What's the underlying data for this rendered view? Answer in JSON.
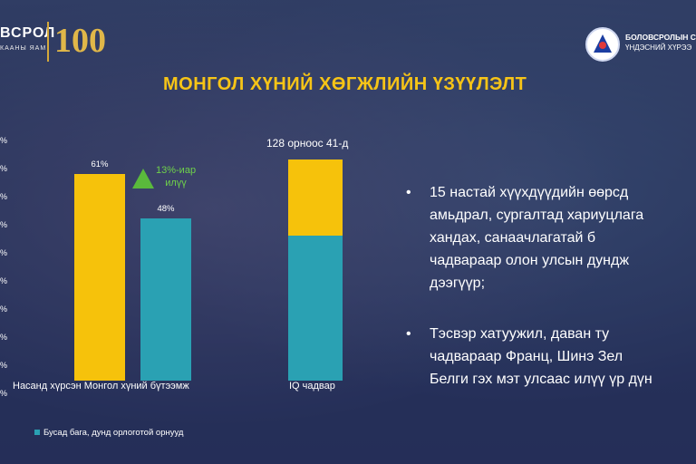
{
  "header": {
    "logo_left_text": "ВСРОЛ",
    "logo_left_sub": "КААНЫ ЯАМ",
    "logo_anniversary": "100",
    "org_name_line1": "БОЛОВСРОЛЫН СУ",
    "org_name_line2": "ҮНДЭСНИЙ ХҮРЭЭ"
  },
  "title": "МОНГОЛ ХҮНИЙ ХӨГЖЛИЙН ҮЗҮҮЛЭЛТ",
  "y_axis_ticks": [
    "%",
    "%",
    "%",
    "%",
    "%",
    "%",
    "%",
    "%",
    "%",
    "%"
  ],
  "chart_data": {
    "type": "bar",
    "categories": [
      "Насанд хүрсэн Монгол  хүний бүтээмж",
      "IQ чадвар"
    ],
    "series": [
      {
        "name": "",
        "color": "#f6c20b",
        "values": [
          61,
          null
        ]
      },
      {
        "name": "Бусад бага, дунд орлоготой орнууд",
        "color": "#2aa1b3",
        "values": [
          48,
          null
        ]
      }
    ],
    "data_labels": [
      "61%",
      "48%"
    ],
    "annotation": {
      "line1": "13%-иар",
      "line2": "илүү"
    },
    "iq_annotation": "128 орноос 41-д",
    "legend": "Бусад бага, дунд орлоготой орнууд"
  },
  "bullets": [
    {
      "lines": [
        "15 настай хүүхдүүдийн өөрсд",
        "амьдрал, сургалтад хариуцлага",
        "хандах,           санаачлагатай          б",
        "чадвараар олон улсын дундж",
        "дээгүүр;"
      ]
    },
    {
      "lines": [
        "Тэсвэр хатуужил, даван ту",
        "чадвараар Франц, Шинэ Зел",
        "Белги гэх мэт улсаас илүү үр дүн"
      ]
    }
  ],
  "bullet_symbol": "•",
  "colors": {
    "accent_yellow": "#f6c20b",
    "accent_teal": "#2aa1b3",
    "title": "#f6c417",
    "positive": "#5ab93c"
  }
}
